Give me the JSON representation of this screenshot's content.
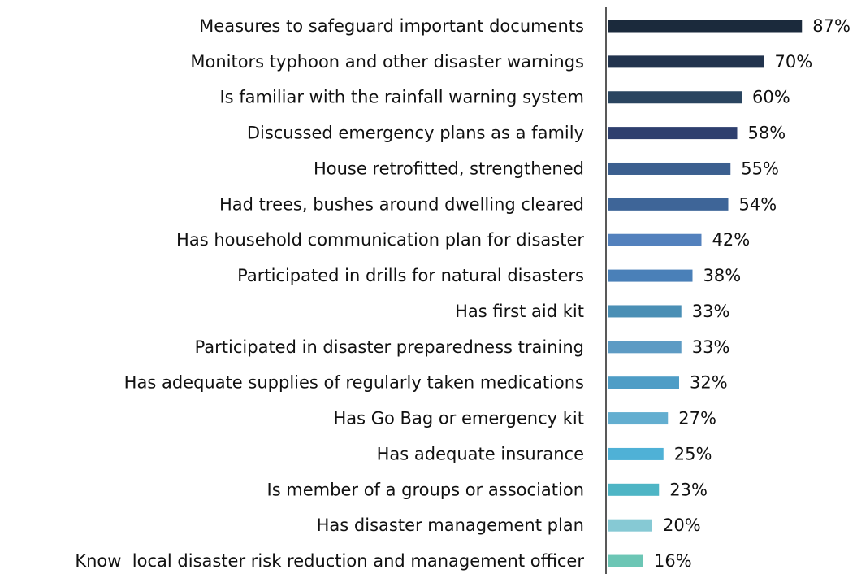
{
  "chart_data": {
    "type": "bar",
    "orientation": "horizontal",
    "categories": [
      "Measures to safeguard important documents",
      "Monitors typhoon and other disaster warnings",
      "Is familiar with the rainfall warning system",
      "Discussed emergency plans as a family",
      "House retrofitted, strengthened",
      "Had trees, bushes around dwelling cleared",
      "Has household communication plan for disaster",
      "Participated in drills for natural disasters",
      "Has first aid kit",
      "Participated in disaster preparedness training",
      "Has adequate supplies of regularly taken medications",
      "Has Go Bag or emergency kit",
      "Has adequate insurance",
      "Is member of a groups or association",
      "Has disaster management plan",
      "Know  local disaster risk reduction and management officer"
    ],
    "values": [
      87,
      70,
      60,
      58,
      55,
      54,
      42,
      38,
      33,
      33,
      32,
      27,
      25,
      23,
      20,
      16
    ],
    "value_labels": [
      "87%",
      "70%",
      "60%",
      "58%",
      "55%",
      "54%",
      "42%",
      "38%",
      "33%",
      "33%",
      "32%",
      "27%",
      "25%",
      "23%",
      "20%",
      "16%"
    ],
    "colors": [
      "#1b2a3c",
      "#22344e",
      "#2a4560",
      "#2e3f6e",
      "#3b5f8f",
      "#3e6598",
      "#5381bd",
      "#4a80b8",
      "#4a8fb5",
      "#5d9bc4",
      "#4e9dc6",
      "#63aed0",
      "#4fb1d6",
      "#4eb5c5",
      "#86c9d4",
      "#6cc6b5"
    ]
  }
}
